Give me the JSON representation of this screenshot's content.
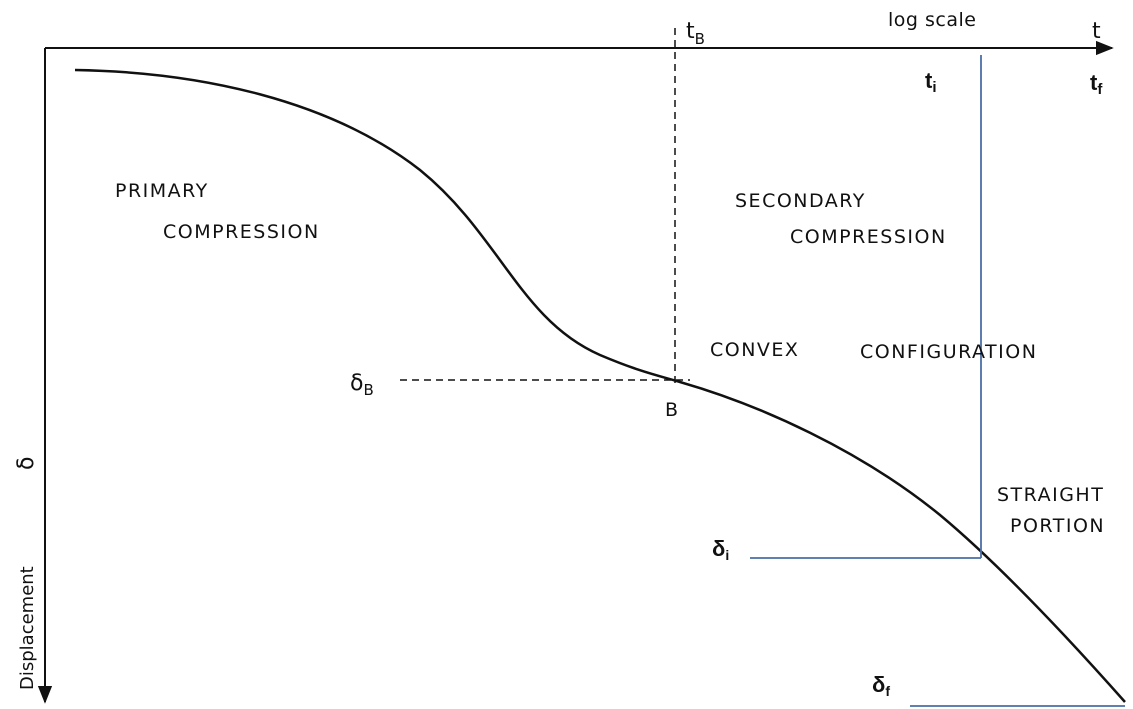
{
  "axes": {
    "scale_note": "log  scale",
    "x_label": "t",
    "y_label": "Displacement",
    "y_symbol": "δ"
  },
  "markers": {
    "t_B": {
      "base": "t",
      "sub": "B"
    },
    "t_i": {
      "base": "t",
      "sub": "i"
    },
    "t_f": {
      "base": "t",
      "sub": "f"
    },
    "delta_B": {
      "base": "δ",
      "sub": "B"
    },
    "delta_i": {
      "base": "δ",
      "sub": "i"
    },
    "delta_f": {
      "base": "δ",
      "sub": "f"
    },
    "point_B": "B"
  },
  "regions": {
    "primary": [
      "PRIMARY",
      "COMPRESSION"
    ],
    "secondary": [
      "SECONDARY",
      "COMPRESSION"
    ],
    "convex": [
      "CONVEX",
      "CONFIGURATION"
    ],
    "straight": [
      "STRAIGHT",
      "PORTION"
    ]
  }
}
